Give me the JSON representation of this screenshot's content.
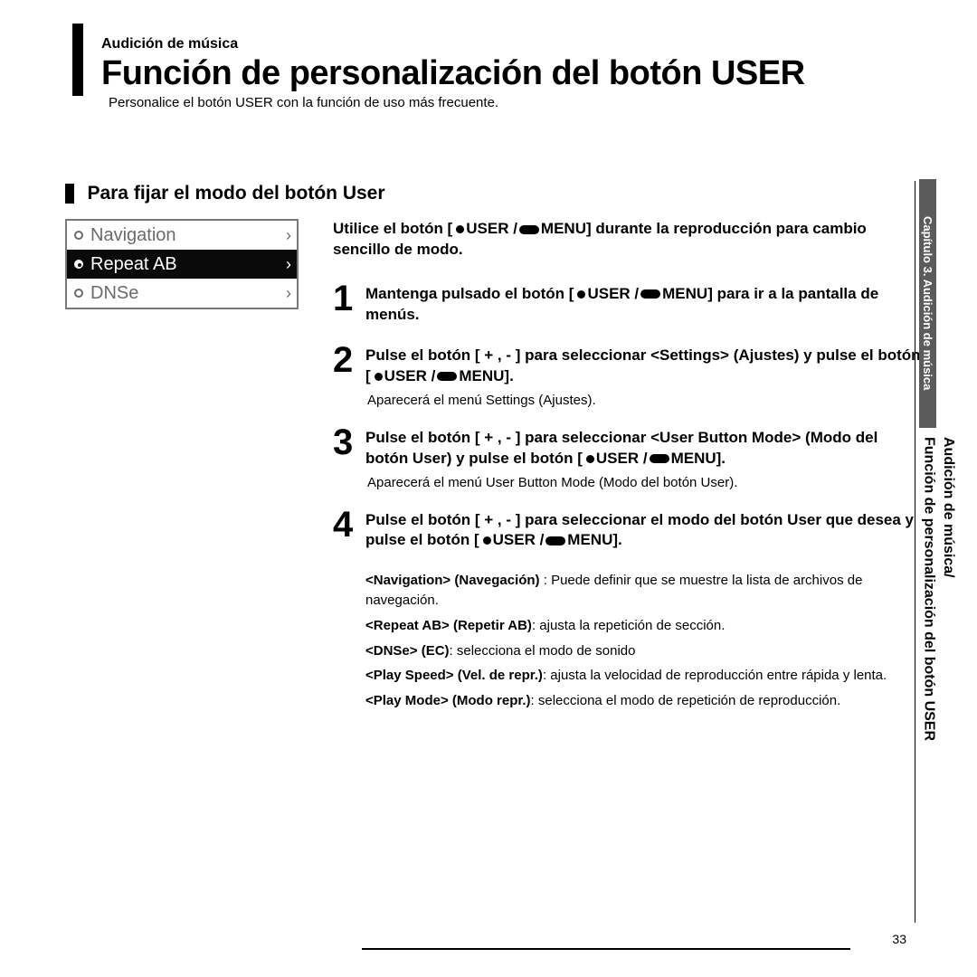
{
  "header": {
    "supheading": "Audición de música",
    "heading": "Función de personalización del botón USER",
    "subtext": "Personalice el botón USER con la función de uso más frecuente."
  },
  "subsection": {
    "heading": "Para fijar el modo del botón User"
  },
  "lcd": {
    "items": [
      {
        "label": "Navigation",
        "selected": false
      },
      {
        "label": "Repeat AB",
        "selected": true
      },
      {
        "label": "DNSe",
        "selected": false
      }
    ]
  },
  "lead": {
    "pre": "Utilice el botón  [",
    "mid": "USER /",
    "post": "MENU] durante la reproducción para cambio sencillo de modo."
  },
  "steps": [
    {
      "num": "1",
      "title_pre": "Mantenga pulsado el botón  [",
      "title_mid": "USER /",
      "title_post": "MENU] para ir a la pantalla de menús.",
      "note": ""
    },
    {
      "num": "2",
      "title_pre": "Pulse el botón [ + , - ] para seleccionar <Settings> (Ajustes) y pulse el botón  [",
      "title_mid": "USER /",
      "title_post": "MENU].",
      "note": "Aparecerá el menú Settings (Ajustes)."
    },
    {
      "num": "3",
      "title_pre": "Pulse el botón [ + , - ] para seleccionar <User Button Mode> (Modo del botón User) y pulse el botón [",
      "title_mid": "USER /",
      "title_post": "MENU].",
      "note": "Aparecerá el menú User Button Mode (Modo del botón User)."
    },
    {
      "num": "4",
      "title_pre": "Pulse el botón [ + , - ] para seleccionar el modo del botón User que desea y pulse el botón [",
      "title_mid": "USER /",
      "title_post": "MENU].",
      "note": ""
    }
  ],
  "defs": [
    {
      "term": "<Navigation> (Navegación)",
      "text": " : Puede definir que se muestre la lista de archivos de navegación."
    },
    {
      "term": "<Repeat AB> (Repetir AB)",
      "text": ": ajusta la repetición de sección."
    },
    {
      "term": "<DNSe> (EC)",
      "text": ": selecciona el modo de sonido"
    },
    {
      "term": "<Play Speed> (Vel. de repr.)",
      "text": ": ajusta la velocidad de reproducción entre rápida y lenta."
    },
    {
      "term": "<Play Mode> (Modo repr.)",
      "text": ": selecciona el modo de repetición de reproducción."
    }
  ],
  "sidetab": {
    "chapter": "Capítulo 3. Audición de música",
    "line1": "Audición de música/",
    "line2": "Función de personalización del botón USER"
  },
  "page_number": "33"
}
